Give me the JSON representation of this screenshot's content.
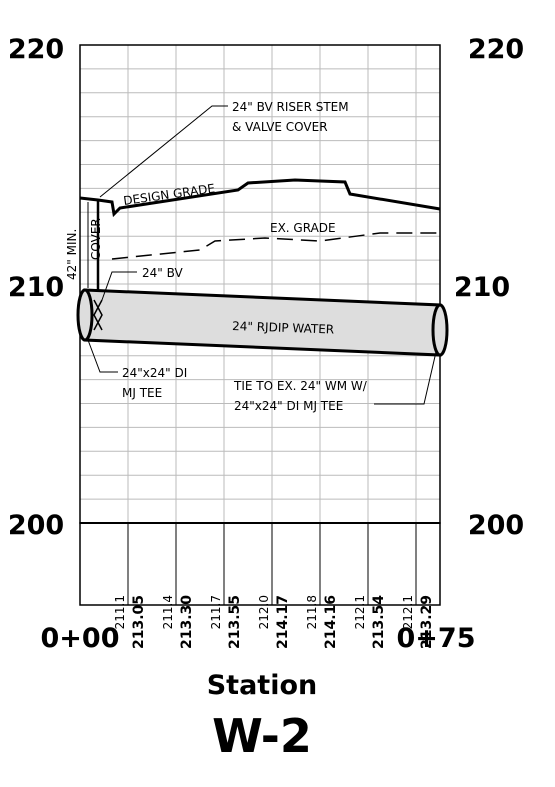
{
  "axis": {
    "left_labels": [
      "220",
      "210",
      "200"
    ],
    "right_labels": [
      "220",
      "210",
      "200"
    ],
    "start_station": "0+00",
    "end_station": "0+75",
    "x_label": "Station"
  },
  "title": "W-2",
  "annotations": {
    "riser": [
      "24\" BV RISER STEM",
      "& VALVE COVER"
    ],
    "design_grade": "DESIGN GRADE",
    "ex_grade": "EX. GRADE",
    "min_cover": [
      "42\" MIN.",
      "COVER"
    ],
    "bv": "24\" BV",
    "pipe": "24\" RJDIP  WATER",
    "tee": [
      "24\"x24\" DI",
      "MJ TEE"
    ],
    "tie": [
      "TIE TO EX. 24\" WM W/",
      "24\"x24\" DI MJ TEE"
    ]
  },
  "elevations": {
    "existing": [
      "211.1",
      "211.4",
      "211.7",
      "212.0",
      "211.8",
      "212.1",
      "212.1"
    ],
    "design": [
      "213.05",
      "213.30",
      "213.55",
      "214.17",
      "214.16",
      "213.54",
      "213.29"
    ]
  }
}
